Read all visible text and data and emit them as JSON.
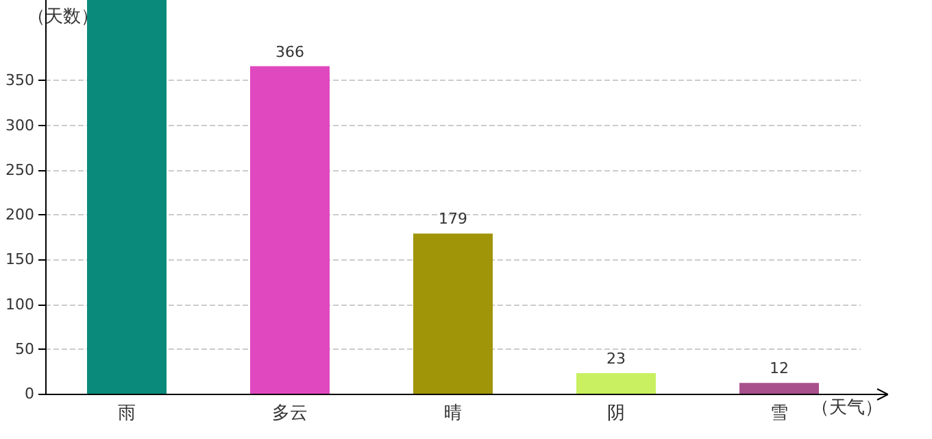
{
  "chart_data": {
    "type": "bar",
    "xlabel": "（天气）",
    "ylabel": "（天数）",
    "categories": [
      "雨",
      "多云",
      "晴",
      "阴",
      "雪"
    ],
    "values": [
      440,
      366,
      179,
      23,
      12
    ],
    "colors": [
      "#0a8a7a",
      "#e048c0",
      "#a09408",
      "#c8f060",
      "#a8508c"
    ],
    "value_labels": [
      null,
      "366",
      "179",
      "23",
      "12"
    ],
    "ylim": [
      0,
      440
    ],
    "yticks": [
      0,
      50,
      100,
      150,
      200,
      250,
      300,
      350
    ],
    "grid": "y"
  }
}
